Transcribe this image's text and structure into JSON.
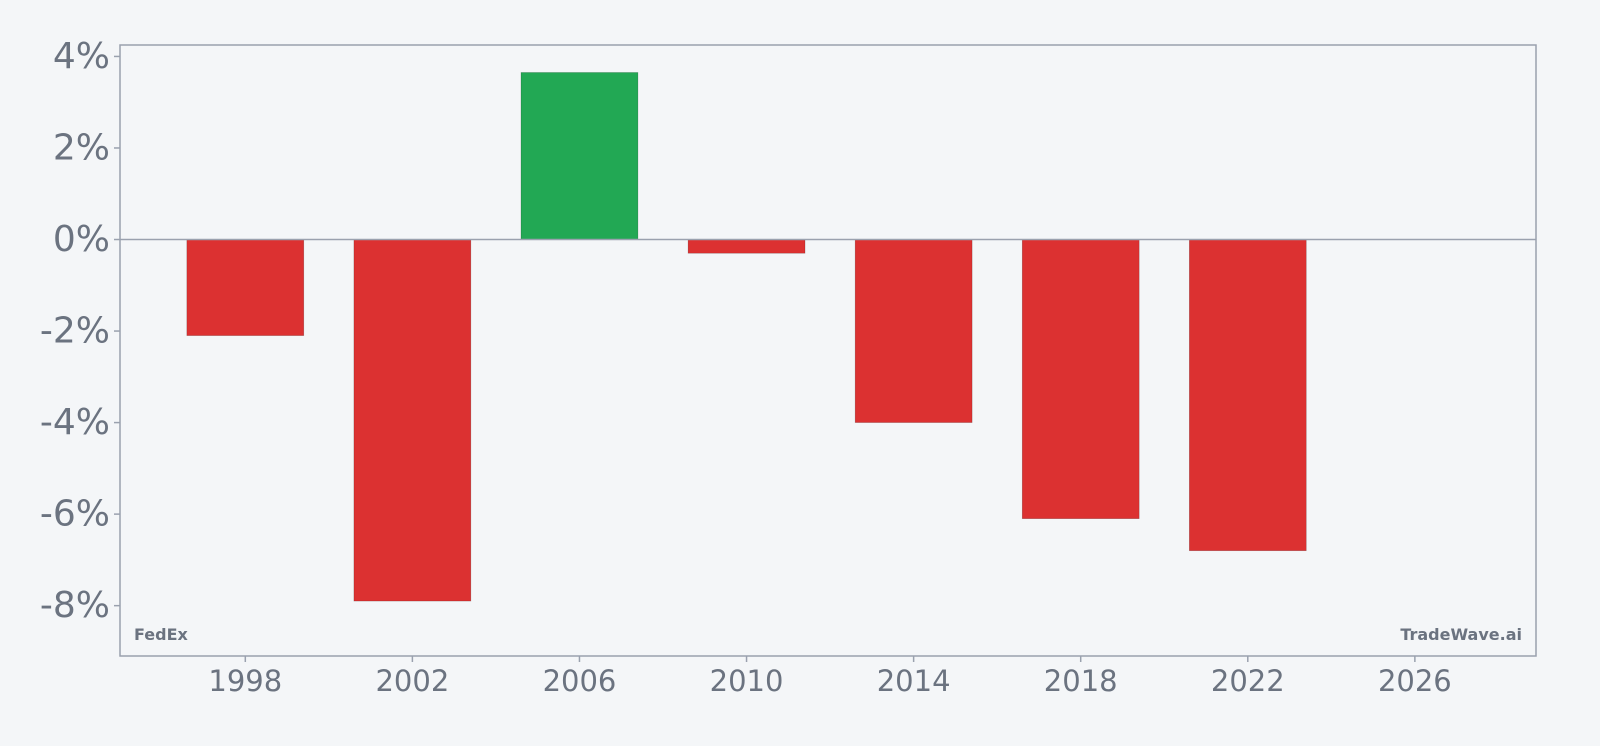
{
  "chart_data": {
    "type": "bar",
    "x": [
      1998,
      2002,
      2006,
      2010,
      2014,
      2018,
      2022
    ],
    "values": [
      -2.1,
      -7.9,
      3.65,
      -0.3,
      -4.0,
      -6.1,
      -6.8
    ],
    "xticks": [
      1998,
      2002,
      2006,
      2010,
      2014,
      2018,
      2022,
      2026
    ],
    "xtick_labels": [
      "1998",
      "2002",
      "2006",
      "2010",
      "2014",
      "2018",
      "2022",
      "2026"
    ],
    "yticks": [
      4,
      2,
      0,
      -2,
      -4,
      -6,
      -8
    ],
    "ytick_labels": [
      "4%",
      "2%",
      "0%",
      "-2%",
      "-4%",
      "-6%",
      "-8%"
    ],
    "xlim": [
      1995.0,
      2028.9
    ],
    "ylim": [
      -9.1,
      4.25
    ],
    "bar_width_years": 2.8,
    "colors": {
      "positive": "#22a854",
      "negative": "#dc3131",
      "axis": "#9aa1ae",
      "text": "#6b7380",
      "background": "#f4f6f8"
    },
    "title": "",
    "xlabel": "",
    "ylabel": "",
    "grid": false,
    "legend": "none"
  },
  "watermarks": {
    "left": "FedEx",
    "right": "TradeWave.ai"
  }
}
